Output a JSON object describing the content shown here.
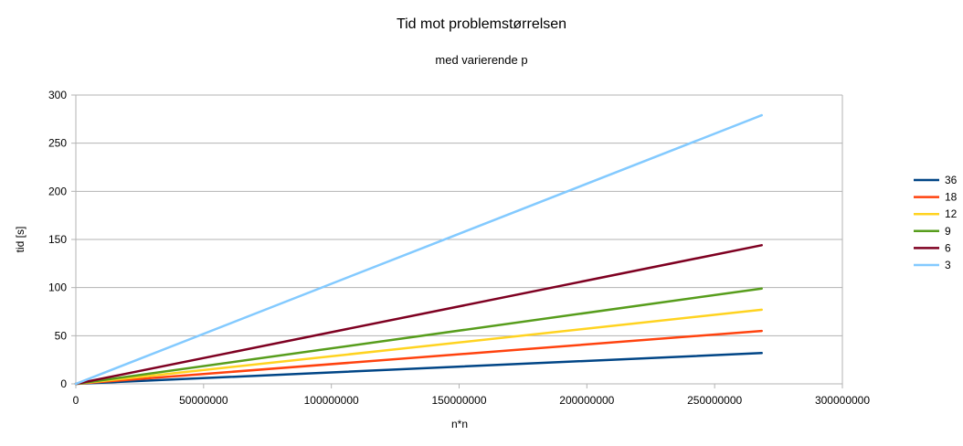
{
  "chart_data": {
    "type": "line",
    "title": "Tid mot problemstørrelsen",
    "subtitle": "med varierende p",
    "xlabel": "n*n",
    "ylabel": "tid [s]",
    "xlim": [
      0,
      300000000
    ],
    "ylim": [
      0,
      300
    ],
    "x_ticks": [
      0,
      50000000,
      100000000,
      150000000,
      200000000,
      250000000,
      300000000
    ],
    "y_ticks": [
      0,
      50,
      100,
      150,
      200,
      250,
      300
    ],
    "grid": "horizontal",
    "legend_position": "right",
    "x": [
      0,
      268435456
    ],
    "series": [
      {
        "name": "36",
        "color": "#004586",
        "values": [
          0,
          32
        ]
      },
      {
        "name": "18",
        "color": "#ff420e",
        "values": [
          0,
          55
        ]
      },
      {
        "name": "12",
        "color": "#ffd320",
        "values": [
          0,
          77
        ]
      },
      {
        "name": "9",
        "color": "#579d1c",
        "values": [
          0,
          99
        ]
      },
      {
        "name": "6",
        "color": "#7e0021",
        "values": [
          0,
          144
        ]
      },
      {
        "name": "3",
        "color": "#83caff",
        "values": [
          0,
          279
        ]
      }
    ]
  }
}
